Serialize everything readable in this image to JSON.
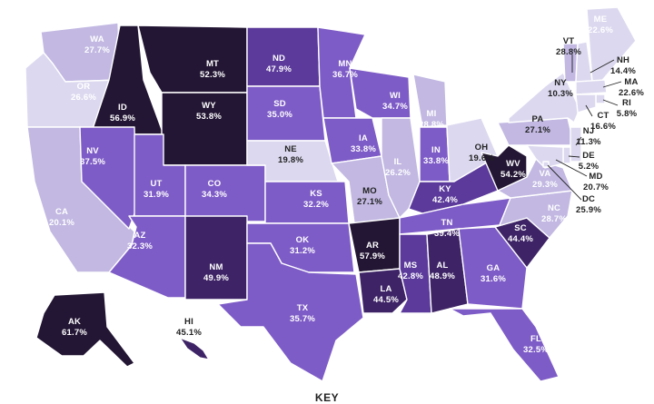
{
  "map": {
    "key_heading": "KEY",
    "colors": {
      "tier1": "#dcd8ef",
      "tier2": "#c2b8e2",
      "tier3": "#9d86d3",
      "tier4": "#7e5cc7",
      "tier5": "#5b3a9b",
      "tier6": "#3e2466",
      "tier7": "#231634",
      "border": "#ffffff"
    },
    "states": [
      {
        "abbr": "WA",
        "value": "27.7%",
        "tier": "tier2"
      },
      {
        "abbr": "OR",
        "value": "26.6%",
        "tier": "tier1"
      },
      {
        "abbr": "CA",
        "value": "20.1%",
        "tier": "tier2"
      },
      {
        "abbr": "ID",
        "value": "56.9%",
        "tier": "tier7"
      },
      {
        "abbr": "NV",
        "value": "37.5%",
        "tier": "tier4"
      },
      {
        "abbr": "MT",
        "value": "52.3%",
        "tier": "tier7"
      },
      {
        "abbr": "WY",
        "value": "53.8%",
        "tier": "tier7"
      },
      {
        "abbr": "UT",
        "value": "31.9%",
        "tier": "tier4"
      },
      {
        "abbr": "CO",
        "value": "34.3%",
        "tier": "tier4"
      },
      {
        "abbr": "AZ",
        "value": "32.3%",
        "tier": "tier4"
      },
      {
        "abbr": "NM",
        "value": "49.9%",
        "tier": "tier6"
      },
      {
        "abbr": "ND",
        "value": "47.9%",
        "tier": "tier5"
      },
      {
        "abbr": "SD",
        "value": "35.0%",
        "tier": "tier4"
      },
      {
        "abbr": "NE",
        "value": "19.8%",
        "tier": "tier1"
      },
      {
        "abbr": "KS",
        "value": "32.2%",
        "tier": "tier4"
      },
      {
        "abbr": "OK",
        "value": "31.2%",
        "tier": "tier4"
      },
      {
        "abbr": "TX",
        "value": "35.7%",
        "tier": "tier4"
      },
      {
        "abbr": "MN",
        "value": "36.7%",
        "tier": "tier4"
      },
      {
        "abbr": "IA",
        "value": "33.8%",
        "tier": "tier4"
      },
      {
        "abbr": "MO",
        "value": "27.1%",
        "tier": "tier2"
      },
      {
        "abbr": "AR",
        "value": "57.9%",
        "tier": "tier7"
      },
      {
        "abbr": "LA",
        "value": "44.5%",
        "tier": "tier6"
      },
      {
        "abbr": "WI",
        "value": "34.7%",
        "tier": "tier4"
      },
      {
        "abbr": "IL",
        "value": "26.2%",
        "tier": "tier2"
      },
      {
        "abbr": "MI",
        "value": "28.8%",
        "tier": "tier2"
      },
      {
        "abbr": "IN",
        "value": "33.8%",
        "tier": "tier4"
      },
      {
        "abbr": "OH",
        "value": "19.6%",
        "tier": "tier1"
      },
      {
        "abbr": "KY",
        "value": "42.4%",
        "tier": "tier5"
      },
      {
        "abbr": "TN",
        "value": "39.4%",
        "tier": "tier4"
      },
      {
        "abbr": "MS",
        "value": "42.8%",
        "tier": "tier5"
      },
      {
        "abbr": "AL",
        "value": "48.9%",
        "tier": "tier6"
      },
      {
        "abbr": "GA",
        "value": "31.6%",
        "tier": "tier4"
      },
      {
        "abbr": "FL",
        "value": "32.5%",
        "tier": "tier4"
      },
      {
        "abbr": "SC",
        "value": "44.4%",
        "tier": "tier6"
      },
      {
        "abbr": "NC",
        "value": "28.7%",
        "tier": "tier2"
      },
      {
        "abbr": "VA",
        "value": "29.3%",
        "tier": "tier2"
      },
      {
        "abbr": "WV",
        "value": "54.2%",
        "tier": "tier7"
      },
      {
        "abbr": "PA",
        "value": "27.1%",
        "tier": "tier2"
      },
      {
        "abbr": "NY",
        "value": "10.3%",
        "tier": "tier1"
      },
      {
        "abbr": "VT",
        "value": "28.8%",
        "tier": "tier2"
      },
      {
        "abbr": "NH",
        "value": "14.4%",
        "tier": "tier1"
      },
      {
        "abbr": "ME",
        "value": "22.6%",
        "tier": "tier1"
      },
      {
        "abbr": "MA",
        "value": "22.6%",
        "tier": "tier1"
      },
      {
        "abbr": "RI",
        "value": "5.8%",
        "tier": "tier1"
      },
      {
        "abbr": "CT",
        "value": "16.6%",
        "tier": "tier1"
      },
      {
        "abbr": "NJ",
        "value": "11.3%",
        "tier": "tier1"
      },
      {
        "abbr": "DE",
        "value": "5.2%",
        "tier": "tier1"
      },
      {
        "abbr": "MD",
        "value": "20.7%",
        "tier": "tier1"
      },
      {
        "abbr": "DC",
        "value": "25.9%",
        "tier": "tier1"
      },
      {
        "abbr": "AK",
        "value": "61.7%",
        "tier": "tier7"
      },
      {
        "abbr": "HI",
        "value": "45.1%",
        "tier": "tier6"
      }
    ]
  }
}
